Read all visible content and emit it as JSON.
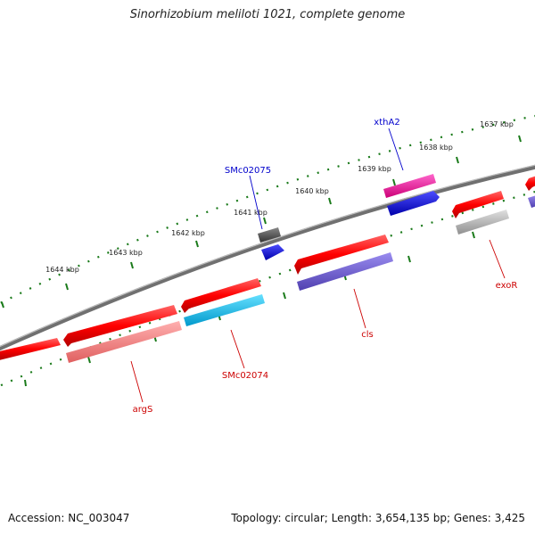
{
  "title": "Sinorhizobium meliloti 1021, complete genome",
  "footer": {
    "accession": "Accession: NC_003047",
    "summary": "Topology: circular; Length: 3,654,135 bp; Genes: 3,425"
  },
  "ticks": [
    "1637 kbp",
    "1638 kbp",
    "1639 kbp",
    "1640 kbp",
    "1641 kbp",
    "1642 kbp",
    "1643 kbp",
    "1644 kbp"
  ],
  "genes": [
    {
      "label": "xthA2",
      "color": "#0000cc"
    },
    {
      "label": "SMc02075",
      "color": "#0000cc"
    },
    {
      "label": "exoR",
      "color": "#cc0000"
    },
    {
      "label": "cls",
      "color": "#cc0000"
    },
    {
      "label": "SMc02074",
      "color": "#cc0000"
    },
    {
      "label": "argS",
      "color": "#cc0000"
    }
  ],
  "colors": {
    "backbone": "#808080",
    "tick_dots": "#1a7a1a",
    "forward_gene": "#ff1a1a",
    "reverse_gene_blue": "#0000ee",
    "cds_purple": "#6a5acd",
    "cds_cyan": "#00bfff",
    "cds_pink": "#f08080",
    "cds_magenta": "#ff1493",
    "cds_gray": "#b0b0b0",
    "cds_darkgray": "#555555"
  }
}
